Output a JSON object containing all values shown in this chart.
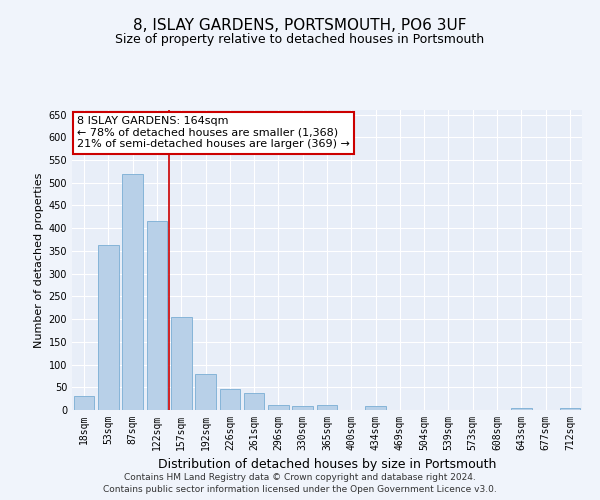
{
  "title": "8, ISLAY GARDENS, PORTSMOUTH, PO6 3UF",
  "subtitle": "Size of property relative to detached houses in Portsmouth",
  "xlabel": "Distribution of detached houses by size in Portsmouth",
  "ylabel": "Number of detached properties",
  "categories": [
    "18sqm",
    "53sqm",
    "87sqm",
    "122sqm",
    "157sqm",
    "192sqm",
    "226sqm",
    "261sqm",
    "296sqm",
    "330sqm",
    "365sqm",
    "400sqm",
    "434sqm",
    "469sqm",
    "504sqm",
    "539sqm",
    "573sqm",
    "608sqm",
    "643sqm",
    "677sqm",
    "712sqm"
  ],
  "values": [
    30,
    362,
    520,
    415,
    205,
    80,
    47,
    38,
    12,
    8,
    12,
    0,
    8,
    0,
    0,
    0,
    0,
    0,
    4,
    0,
    4
  ],
  "bar_color": "#b8d0e8",
  "bar_edge_color": "#7aadd4",
  "vline_pos": 3.5,
  "vline_color": "#cc0000",
  "annotation_text": "8 ISLAY GARDENS: 164sqm\n← 78% of detached houses are smaller (1,368)\n21% of semi-detached houses are larger (369) →",
  "annotation_box_facecolor": "#ffffff",
  "annotation_box_edgecolor": "#cc0000",
  "ylim": [
    0,
    660
  ],
  "yticks": [
    0,
    50,
    100,
    150,
    200,
    250,
    300,
    350,
    400,
    450,
    500,
    550,
    600,
    650
  ],
  "fig_facecolor": "#f0f4fb",
  "plot_facecolor": "#e8eef8",
  "grid_color": "#ffffff",
  "title_fontsize": 11,
  "subtitle_fontsize": 9,
  "xlabel_fontsize": 9,
  "ylabel_fontsize": 8,
  "tick_fontsize": 7,
  "annot_fontsize": 8,
  "footer1": "Contains HM Land Registry data © Crown copyright and database right 2024.",
  "footer2": "Contains public sector information licensed under the Open Government Licence v3.0.",
  "footer_fontsize": 6.5
}
